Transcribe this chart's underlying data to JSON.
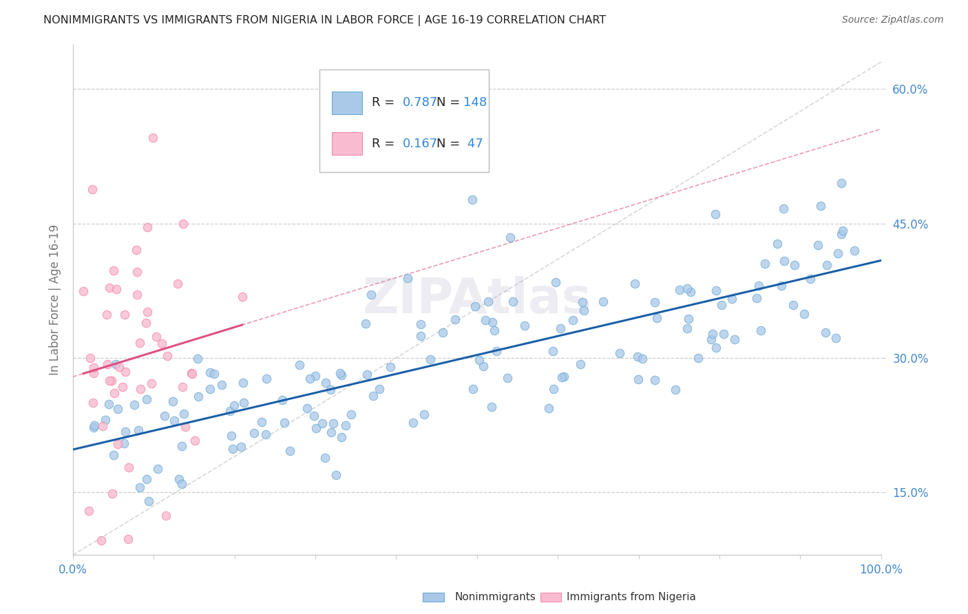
{
  "title": "NONIMMIGRANTS VS IMMIGRANTS FROM NIGERIA IN LABOR FORCE | AGE 16-19 CORRELATION CHART",
  "source": "Source: ZipAtlas.com",
  "ylabel": "In Labor Force | Age 16-19",
  "nonimmigrant_R": 0.787,
  "nonimmigrant_N": 148,
  "immigrant_R": 0.167,
  "immigrant_N": 47,
  "blue_fill": "#aac8e8",
  "blue_edge": "#6aaad4",
  "blue_line_color": "#1a5fa8",
  "pink_fill": "#f8bbd0",
  "pink_edge": "#f48ca8",
  "pink_line_color": "#e05080",
  "pink_dash_color": "#e07090",
  "dashed_color": "#cccccc",
  "title_color": "#222222",
  "source_color": "#666666",
  "axis_label_color": "#4488cc",
  "legend_R_color": "#222222",
  "legend_N_color": "#3388dd",
  "xlim": [
    0.0,
    1.0
  ],
  "ylim": [
    0.08,
    0.65
  ],
  "yticks": [
    0.15,
    0.3,
    0.45,
    0.6
  ],
  "ytick_labels": [
    "15.0%",
    "30.0%",
    "45.0%",
    "60.0%"
  ],
  "watermark": "ZIPAtlas",
  "watermark_color": "#9999bb",
  "seed": 42
}
